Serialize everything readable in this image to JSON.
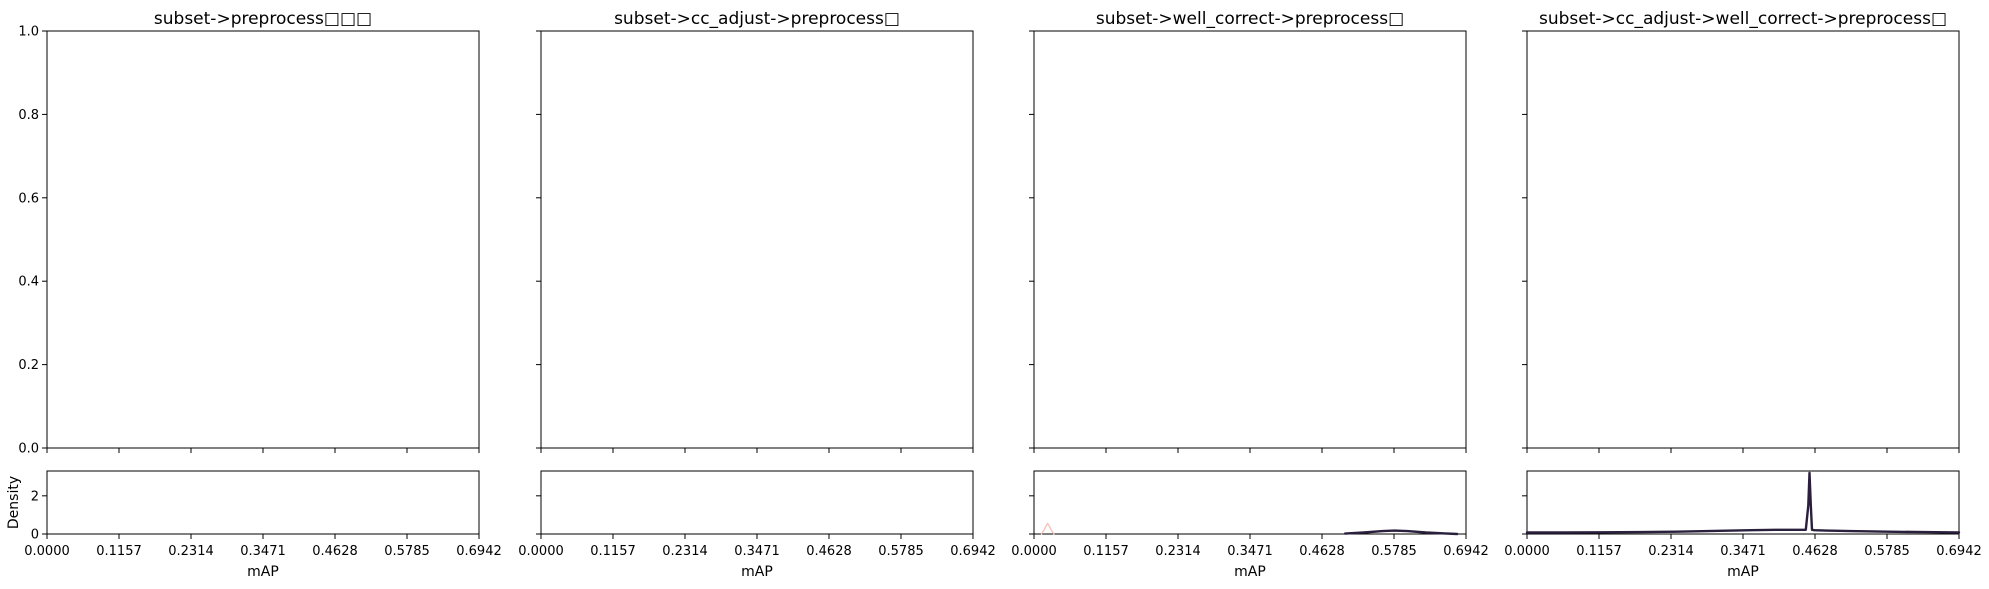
{
  "figure": {
    "background": "#ffffff",
    "axis_color": "#000000"
  },
  "chart_data": [
    {
      "type": "line",
      "title": "subset->preprocess□□□",
      "main": {
        "ylim": [
          0,
          1
        ],
        "yticks": [
          "0.0",
          "0.2",
          "0.4",
          "0.6",
          "0.8",
          "1.0"
        ],
        "show_ytick_labels": true,
        "series": []
      },
      "density": {
        "ylabel": "Density",
        "ylim": [
          0,
          3.3
        ],
        "yticks": [
          "0",
          "2"
        ],
        "show_ytick_labels": true,
        "series": []
      },
      "xlabel": "mAP",
      "xlim": [
        0,
        0.6942
      ],
      "xticks": [
        "0.0000",
        "0.1157",
        "0.2314",
        "0.3471",
        "0.4628",
        "0.5785",
        "0.6942"
      ]
    },
    {
      "type": "line",
      "title": "subset->cc_adjust->preprocess□",
      "main": {
        "ylim": [
          0,
          1
        ],
        "yticks": [
          "0.0",
          "0.2",
          "0.4",
          "0.6",
          "0.8",
          "1.0"
        ],
        "show_ytick_labels": false,
        "series": []
      },
      "density": {
        "ylabel": "",
        "ylim": [
          0,
          3.3
        ],
        "yticks": [
          "0",
          "2"
        ],
        "show_ytick_labels": false,
        "series": []
      },
      "xlabel": "mAP",
      "xlim": [
        0,
        0.6942
      ],
      "xticks": [
        "0.0000",
        "0.1157",
        "0.2314",
        "0.3471",
        "0.4628",
        "0.5785",
        "0.6942"
      ]
    },
    {
      "type": "line",
      "title": "subset->well_correct->preprocess□",
      "main": {
        "ylim": [
          0,
          1
        ],
        "yticks": [
          "0.0",
          "0.2",
          "0.4",
          "0.6",
          "0.8",
          "1.0"
        ],
        "show_ytick_labels": false,
        "series": []
      },
      "density": {
        "ylabel": "",
        "ylim": [
          0,
          3.3
        ],
        "yticks": [
          "0",
          "2"
        ],
        "show_ytick_labels": false,
        "series": [
          {
            "color": "#f4c0b8",
            "width": 1.3,
            "x": [
              0.012,
              0.016,
              0.02,
              0.022,
              0.024,
              0.028,
              0.032
            ],
            "y": [
              0.0,
              0.2,
              0.45,
              0.55,
              0.45,
              0.2,
              0.0
            ]
          },
          {
            "color": "#2a1f3d",
            "width": 2.4,
            "x": [
              0.5,
              0.53,
              0.56,
              0.58,
              0.6,
              0.63,
              0.66,
              0.68
            ],
            "y": [
              0.02,
              0.08,
              0.15,
              0.18,
              0.15,
              0.08,
              0.03,
              0.0
            ]
          }
        ]
      },
      "xlabel": "mAP",
      "xlim": [
        0,
        0.6942
      ],
      "xticks": [
        "0.0000",
        "0.1157",
        "0.2314",
        "0.3471",
        "0.4628",
        "0.5785",
        "0.6942"
      ]
    },
    {
      "type": "line",
      "title": "subset->cc_adjust->well_correct->preprocess□",
      "main": {
        "ylim": [
          0,
          1
        ],
        "yticks": [
          "0.0",
          "0.2",
          "0.4",
          "0.6",
          "0.8",
          "1.0"
        ],
        "show_ytick_labels": false,
        "series": []
      },
      "density": {
        "ylabel": "",
        "ylim": [
          0,
          3.3
        ],
        "yticks": [
          "0",
          "2"
        ],
        "show_ytick_labels": false,
        "series": [
          {
            "color": "#2a1f3d",
            "width": 2.4,
            "x": [
              0.0,
              0.06,
              0.12,
              0.18,
              0.24,
              0.3,
              0.36,
              0.4,
              0.44,
              0.448,
              0.452,
              0.454,
              0.456,
              0.458,
              0.462,
              0.48,
              0.52,
              0.58,
              0.64,
              0.6942
            ],
            "y": [
              0.08,
              0.08,
              0.09,
              0.1,
              0.12,
              0.16,
              0.2,
              0.22,
              0.22,
              0.22,
              1.5,
              3.2,
              1.5,
              0.22,
              0.2,
              0.18,
              0.15,
              0.12,
              0.1,
              0.08
            ]
          }
        ]
      },
      "xlabel": "mAP",
      "xlim": [
        0,
        0.6942
      ],
      "xticks": [
        "0.0000",
        "0.1157",
        "0.2314",
        "0.3471",
        "0.4628",
        "0.5785",
        "0.6942"
      ]
    }
  ]
}
